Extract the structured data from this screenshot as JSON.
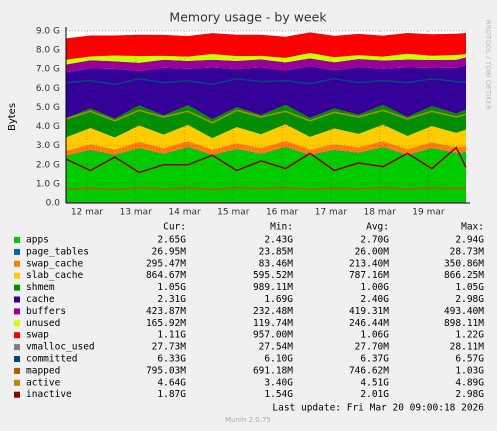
{
  "chart_data": {
    "type": "area",
    "title": "Memory usage - by week",
    "ylabel": "Bytes",
    "side_text": "RRDTOOL / TOBI OETIKER",
    "xlim": [
      0,
      8.2
    ],
    "xticks": [
      {
        "value": 0.43,
        "label": "12 mar"
      },
      {
        "value": 1.43,
        "label": "13 mar"
      },
      {
        "value": 2.43,
        "label": "14 mar"
      },
      {
        "value": 3.43,
        "label": "15 mar"
      },
      {
        "value": 4.43,
        "label": "16 mar"
      },
      {
        "value": 5.43,
        "label": "17 mar"
      },
      {
        "value": 6.43,
        "label": "18 mar"
      },
      {
        "value": 7.43,
        "label": "19 mar"
      }
    ],
    "ylim": [
      0,
      9
    ],
    "yticks": [
      {
        "value": 0,
        "label": "0.0"
      },
      {
        "value": 1,
        "label": "1.0 G"
      },
      {
        "value": 2,
        "label": "2.0 G"
      },
      {
        "value": 3,
        "label": "3.0 G"
      },
      {
        "value": 4,
        "label": "4.0 G"
      },
      {
        "value": 5,
        "label": "5.0 G"
      },
      {
        "value": 6,
        "label": "6.0 G"
      },
      {
        "value": 7,
        "label": "7.0 G"
      },
      {
        "value": 8,
        "label": "8.0 G"
      },
      {
        "value": 9,
        "label": "9.0 G"
      }
    ],
    "grid": true,
    "x": [
      0,
      0.5,
      1,
      1.5,
      2,
      2.5,
      3,
      3.5,
      4,
      4.5,
      5,
      5.5,
      6,
      6.5,
      7,
      7.5,
      8,
      8.2
    ],
    "stat_headers": [
      "Cur:",
      "Min:",
      "Avg:",
      "Max:"
    ],
    "series": [
      {
        "name": "apps",
        "color": "#00cc00",
        "stack": true,
        "values": [
          2.45,
          2.75,
          2.5,
          2.85,
          2.55,
          2.9,
          2.5,
          2.8,
          2.55,
          2.9,
          2.5,
          2.75,
          2.6,
          2.9,
          2.5,
          2.85,
          2.6,
          2.65
        ],
        "stats": [
          "2.65G",
          "2.43G",
          "2.70G",
          "2.94G"
        ]
      },
      {
        "name": "page_tables",
        "color": "#0066b3",
        "stack": true,
        "values": [
          0.027,
          0.027,
          0.027,
          0.027,
          0.027,
          0.027,
          0.027,
          0.027,
          0.027,
          0.027,
          0.027,
          0.027,
          0.027,
          0.027,
          0.027,
          0.027,
          0.027,
          0.027
        ],
        "stats": [
          "26.95M",
          "23.85M",
          "26.00M",
          "28.73M"
        ]
      },
      {
        "name": "swap_cache",
        "color": "#ff8000",
        "stack": true,
        "values": [
          0.26,
          0.3,
          0.28,
          0.32,
          0.3,
          0.31,
          0.27,
          0.3,
          0.3,
          0.33,
          0.28,
          0.3,
          0.29,
          0.31,
          0.3,
          0.3,
          0.29,
          0.3
        ],
        "stats": [
          "295.47M",
          "83.46M",
          "213.40M",
          "350.86M"
        ]
      },
      {
        "name": "slab_cache",
        "color": "#ffcc00",
        "stack": true,
        "values": [
          0.7,
          0.85,
          0.62,
          0.86,
          0.7,
          0.85,
          0.6,
          0.84,
          0.72,
          0.86,
          0.65,
          0.82,
          0.7,
          0.86,
          0.68,
          0.85,
          0.75,
          0.86
        ],
        "stats": [
          "864.67M",
          "595.52M",
          "787.16M",
          "866.25M"
        ]
      },
      {
        "name": "shmem",
        "color": "#008f00",
        "stack": true,
        "values": [
          1.0,
          1.02,
          0.99,
          1.05,
          1.0,
          1.03,
          0.99,
          1.04,
          1.0,
          1.02,
          1.0,
          1.05,
          1.0,
          1.03,
          0.99,
          1.04,
          1.01,
          1.05
        ],
        "stats": [
          "1.05G",
          "989.11M",
          "1.00G",
          "1.05G"
        ]
      },
      {
        "name": "cache",
        "color": "#330099",
        "stack": true,
        "values": [
          2.4,
          2.1,
          2.6,
          1.8,
          2.5,
          1.9,
          2.7,
          2.0,
          2.5,
          1.8,
          2.7,
          2.0,
          2.5,
          1.9,
          2.6,
          2.0,
          2.4,
          2.31
        ],
        "stats": [
          "2.31G",
          "1.69G",
          "2.40G",
          "2.98G"
        ]
      },
      {
        "name": "buffers",
        "color": "#990099",
        "stack": true,
        "values": [
          0.41,
          0.42,
          0.4,
          0.43,
          0.42,
          0.42,
          0.41,
          0.43,
          0.42,
          0.42,
          0.41,
          0.42,
          0.42,
          0.43,
          0.41,
          0.42,
          0.42,
          0.42
        ],
        "stats": [
          "423.87M",
          "232.48M",
          "419.31M",
          "493.40M"
        ]
      },
      {
        "name": "unused",
        "color": "#ccff00",
        "stack": true,
        "values": [
          0.25,
          0.2,
          0.3,
          0.35,
          0.2,
          0.22,
          0.3,
          0.25,
          0.18,
          0.24,
          0.28,
          0.26,
          0.2,
          0.2,
          0.3,
          0.22,
          0.25,
          0.17
        ],
        "stats": [
          "165.92M",
          "119.74M",
          "246.44M",
          "898.11M"
        ]
      },
      {
        "name": "swap",
        "color": "#ff0000",
        "stack": true,
        "values": [
          1.12,
          1.1,
          1.05,
          1.12,
          1.1,
          1.08,
          1.09,
          1.12,
          1.11,
          1.1,
          1.08,
          1.12,
          1.11,
          1.1,
          1.09,
          1.12,
          1.11,
          1.11
        ],
        "stats": [
          "1.11G",
          "957.00M",
          "1.06G",
          "1.22G"
        ]
      },
      {
        "name": "vmalloc_used",
        "color": "#808080",
        "stack": false,
        "values": [
          0.028,
          0.028,
          0.028,
          0.028,
          0.028,
          0.028,
          0.028,
          0.028,
          0.028,
          0.028,
          0.028,
          0.028,
          0.028,
          0.028,
          0.028,
          0.028,
          0.028,
          0.028
        ],
        "stats": [
          "27.73M",
          "27.54M",
          "27.70M",
          "28.11M"
        ]
      },
      {
        "name": "committed",
        "color": "#00487d",
        "stack": false,
        "values": [
          6.3,
          6.4,
          6.2,
          6.5,
          6.3,
          6.4,
          6.2,
          6.5,
          6.35,
          6.4,
          6.25,
          6.5,
          6.3,
          6.4,
          6.3,
          6.5,
          6.35,
          6.33
        ],
        "stats": [
          "6.33G",
          "6.10G",
          "6.37G",
          "6.57G"
        ]
      },
      {
        "name": "mapped",
        "color": "#b35a00",
        "stack": false,
        "values": [
          0.72,
          0.78,
          0.7,
          0.8,
          0.74,
          0.79,
          0.7,
          0.8,
          0.75,
          0.8,
          0.72,
          0.78,
          0.74,
          0.8,
          0.73,
          0.79,
          0.75,
          0.8
        ],
        "stats": [
          "795.03M",
          "691.18M",
          "746.62M",
          "1.03G"
        ]
      },
      {
        "name": "active",
        "color": "#b38f00",
        "stack": false,
        "values": [
          4.4,
          4.8,
          4.3,
          4.85,
          4.5,
          4.8,
          4.2,
          4.85,
          4.5,
          4.8,
          4.3,
          4.75,
          4.5,
          4.85,
          4.4,
          4.8,
          4.5,
          4.64
        ],
        "stats": [
          "4.64G",
          "3.40G",
          "4.51G",
          "4.89G"
        ]
      },
      {
        "name": "inactive",
        "color": "#8f0000",
        "stack": false,
        "values": [
          2.3,
          1.7,
          2.4,
          1.6,
          2.0,
          2.0,
          2.5,
          1.7,
          2.2,
          1.8,
          2.6,
          1.7,
          2.1,
          1.9,
          2.6,
          1.8,
          2.9,
          1.87
        ],
        "stats": [
          "1.87G",
          "1.54G",
          "2.01G",
          "2.98G"
        ]
      }
    ],
    "last_update": "Last update: Fri Mar 20 09:00:18 2026",
    "footer": "Munin 2.0.75"
  }
}
